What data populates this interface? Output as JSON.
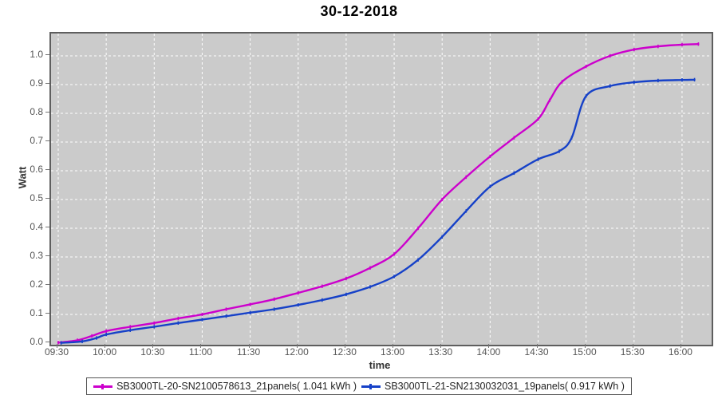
{
  "title": "30-12-2018",
  "chart_data": {
    "type": "line",
    "title": "30-12-2018",
    "xlabel": "time",
    "ylabel": "Watt",
    "x_ticks": [
      "09:30",
      "10:00",
      "10:30",
      "11:00",
      "11:30",
      "12:00",
      "12:30",
      "13:00",
      "13:30",
      "14:00",
      "14:30",
      "15:00",
      "15:30",
      "16:00"
    ],
    "y_ticks": [
      "0.0",
      "0.1",
      "0.2",
      "0.3",
      "0.4",
      "0.5",
      "0.6",
      "0.7",
      "0.8",
      "0.9",
      "1.0"
    ],
    "ylim": [
      0.0,
      1.078
    ],
    "xlim_hours": [
      9.43,
      16.31
    ],
    "grid": true,
    "grid_style": "dashed-white",
    "plot_background": "#cbcbcb",
    "legend_position": "bottom",
    "series": [
      {
        "name": "SB3000TL-20-SN2100578613_21panels( 1.041 kWh )",
        "color": "#cc00cc",
        "total_kwh": 1.041,
        "points": [
          [
            9.5,
            0.002
          ],
          [
            9.7,
            0.01
          ],
          [
            9.85,
            0.025
          ],
          [
            10.0,
            0.042
          ],
          [
            10.25,
            0.057
          ],
          [
            10.5,
            0.07
          ],
          [
            10.75,
            0.086
          ],
          [
            11.0,
            0.1
          ],
          [
            11.25,
            0.118
          ],
          [
            11.5,
            0.135
          ],
          [
            11.75,
            0.153
          ],
          [
            12.0,
            0.175
          ],
          [
            12.25,
            0.198
          ],
          [
            12.5,
            0.225
          ],
          [
            12.75,
            0.262
          ],
          [
            13.0,
            0.31
          ],
          [
            13.25,
            0.4
          ],
          [
            13.5,
            0.5
          ],
          [
            13.75,
            0.578
          ],
          [
            14.0,
            0.65
          ],
          [
            14.25,
            0.715
          ],
          [
            14.5,
            0.78
          ],
          [
            14.62,
            0.845
          ],
          [
            14.75,
            0.91
          ],
          [
            15.0,
            0.963
          ],
          [
            15.25,
            1.0
          ],
          [
            15.5,
            1.022
          ],
          [
            15.75,
            1.033
          ],
          [
            16.0,
            1.039
          ],
          [
            16.17,
            1.041
          ]
        ]
      },
      {
        "name": "SB3000TL-21-SN2130032031_19panels( 0.917 kWh )",
        "color": "#1641c8",
        "total_kwh": 0.917,
        "points": [
          [
            9.53,
            0.001
          ],
          [
            9.75,
            0.006
          ],
          [
            9.9,
            0.018
          ],
          [
            10.0,
            0.03
          ],
          [
            10.25,
            0.045
          ],
          [
            10.5,
            0.057
          ],
          [
            10.75,
            0.07
          ],
          [
            11.0,
            0.082
          ],
          [
            11.25,
            0.094
          ],
          [
            11.5,
            0.106
          ],
          [
            11.75,
            0.118
          ],
          [
            12.0,
            0.133
          ],
          [
            12.25,
            0.15
          ],
          [
            12.5,
            0.17
          ],
          [
            12.75,
            0.196
          ],
          [
            13.0,
            0.232
          ],
          [
            13.25,
            0.29
          ],
          [
            13.5,
            0.37
          ],
          [
            13.75,
            0.46
          ],
          [
            14.0,
            0.545
          ],
          [
            14.25,
            0.592
          ],
          [
            14.5,
            0.64
          ],
          [
            14.72,
            0.668
          ],
          [
            14.85,
            0.715
          ],
          [
            15.0,
            0.86
          ],
          [
            15.25,
            0.895
          ],
          [
            15.5,
            0.908
          ],
          [
            15.75,
            0.914
          ],
          [
            16.0,
            0.916
          ],
          [
            16.13,
            0.917
          ]
        ]
      }
    ]
  }
}
